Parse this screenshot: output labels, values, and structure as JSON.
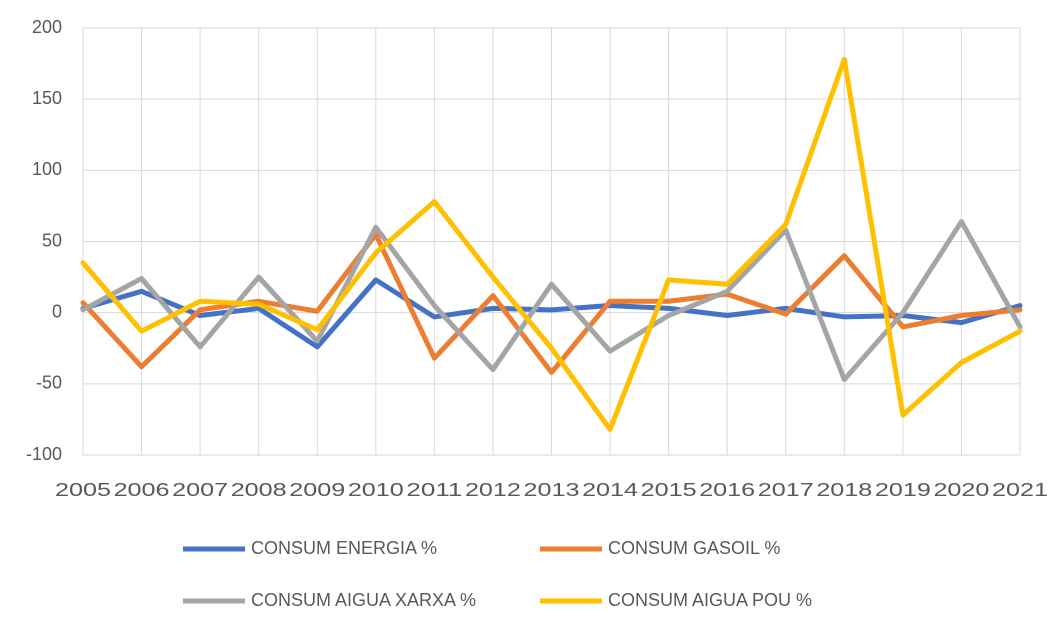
{
  "chart_data": {
    "type": "line",
    "categories": [
      "2005",
      "2006",
      "2007",
      "2008",
      "2009",
      "2010",
      "2011",
      "2012",
      "2013",
      "2014",
      "2015",
      "2016",
      "2017",
      "2018",
      "2019",
      "2020",
      "2021"
    ],
    "series": [
      {
        "name": "CONSUM ENERGIA %",
        "color": "#4472c4",
        "values": [
          3,
          15,
          -2,
          3,
          -24,
          23,
          -3,
          3,
          2,
          5,
          3,
          -2,
          3,
          -3,
          -2,
          -7,
          5
        ]
      },
      {
        "name": "CONSUM GASOIL %",
        "color": "#ed7d31",
        "values": [
          7,
          -38,
          2,
          8,
          1,
          55,
          -32,
          12,
          -42,
          8,
          8,
          13,
          -1,
          40,
          -10,
          -2,
          2
        ]
      },
      {
        "name": "CONSUM AIGUA XARXA %",
        "color": "#a5a5a5",
        "values": [
          2,
          24,
          -24,
          25,
          -20,
          60,
          5,
          -40,
          20,
          -27,
          -2,
          15,
          58,
          -47,
          0,
          64,
          -10
        ]
      },
      {
        "name": "CONSUM AIGUA POU %",
        "color": "#ffc000",
        "values": [
          35,
          -13,
          8,
          6,
          -12,
          42,
          78,
          25,
          -25,
          -82,
          23,
          20,
          62,
          178,
          -72,
          -35,
          -13
        ]
      }
    ],
    "ylim": [
      -100,
      200
    ],
    "yticks": [
      -100,
      -50,
      0,
      50,
      100,
      150,
      200
    ],
    "grid": true,
    "legend": "bottom"
  }
}
